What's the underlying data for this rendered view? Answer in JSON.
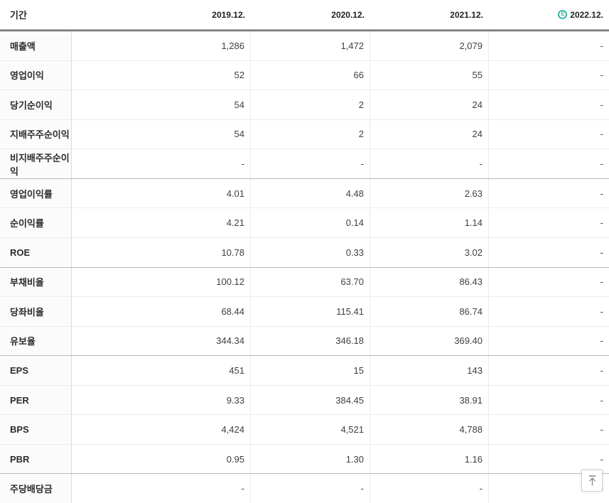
{
  "table": {
    "period_label": "기간",
    "columns": [
      {
        "label": "2019.12.",
        "estimated": false
      },
      {
        "label": "2020.12.",
        "estimated": false
      },
      {
        "label": "2021.12.",
        "estimated": false
      },
      {
        "label": "2022.12.",
        "estimated": true
      }
    ],
    "rows": [
      {
        "label": "매출액",
        "values": [
          "1,286",
          "1,472",
          "2,079",
          "-"
        ],
        "group_start": false
      },
      {
        "label": "영업이익",
        "values": [
          "52",
          "66",
          "55",
          "-"
        ],
        "group_start": false
      },
      {
        "label": "당기순이익",
        "values": [
          "54",
          "2",
          "24",
          "-"
        ],
        "group_start": false
      },
      {
        "label": "지배주주순이익",
        "values": [
          "54",
          "2",
          "24",
          "-"
        ],
        "group_start": false
      },
      {
        "label": "비지배주주순이익",
        "values": [
          "-",
          "-",
          "-",
          "-"
        ],
        "group_start": false
      },
      {
        "label": "영업이익률",
        "values": [
          "4.01",
          "4.48",
          "2.63",
          "-"
        ],
        "group_start": true
      },
      {
        "label": "순이익률",
        "values": [
          "4.21",
          "0.14",
          "1.14",
          "-"
        ],
        "group_start": false
      },
      {
        "label": "ROE",
        "values": [
          "10.78",
          "0.33",
          "3.02",
          "-"
        ],
        "group_start": false
      },
      {
        "label": "부채비율",
        "values": [
          "100.12",
          "63.70",
          "86.43",
          "-"
        ],
        "group_start": true
      },
      {
        "label": "당좌비율",
        "values": [
          "68.44",
          "115.41",
          "86.74",
          "-"
        ],
        "group_start": false
      },
      {
        "label": "유보율",
        "values": [
          "344.34",
          "346.18",
          "369.40",
          "-"
        ],
        "group_start": false
      },
      {
        "label": "EPS",
        "values": [
          "451",
          "15",
          "143",
          "-"
        ],
        "group_start": true
      },
      {
        "label": "PER",
        "values": [
          "9.33",
          "384.45",
          "38.91",
          "-"
        ],
        "group_start": false
      },
      {
        "label": "BPS",
        "values": [
          "4,424",
          "4,521",
          "4,788",
          "-"
        ],
        "group_start": false
      },
      {
        "label": "PBR",
        "values": [
          "0.95",
          "1.30",
          "1.16",
          "-"
        ],
        "group_start": false
      },
      {
        "label": "주당배당금",
        "values": [
          "-",
          "-",
          "-",
          "-"
        ],
        "group_start": true
      }
    ]
  },
  "icons": {
    "estimate_glyph": "E",
    "estimate_icon": "circle-E-estimate-icon",
    "scroll_top_icon": "arrow-up-to-top-icon"
  },
  "colors": {
    "estimate": "#3ab5a8",
    "header_rule_dark": "#4a4a4a",
    "group_rule": "#b7b7b7",
    "row_rule": "#ebebeb",
    "label_bg": "#fbfbfb"
  }
}
